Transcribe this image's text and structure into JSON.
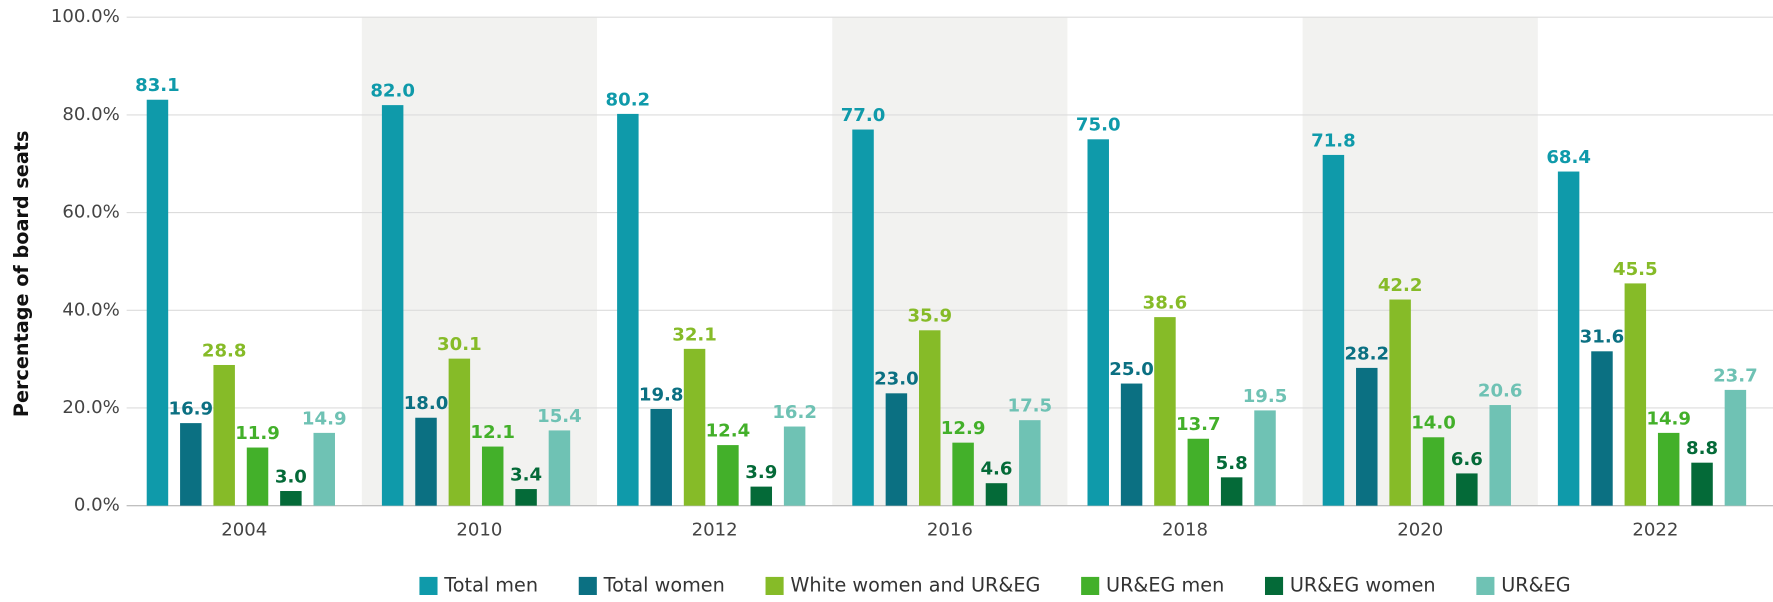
{
  "chart_data": {
    "type": "bar",
    "y_label": "Percentage of board seats",
    "categories": [
      "2004",
      "2010",
      "2012",
      "2016",
      "2018",
      "2020",
      "2022"
    ],
    "series": [
      {
        "name": "Total men",
        "color": "#0f9aaa",
        "values": [
          83.1,
          82.0,
          80.2,
          77.0,
          75.0,
          71.8,
          68.4
        ],
        "value_labels": [
          "83.1",
          "82.0",
          "80.2",
          "77.0",
          "75.0",
          "71.8",
          "68.4"
        ]
      },
      {
        "name": "Total women",
        "color": "#0b7082",
        "values": [
          16.9,
          18.0,
          19.8,
          23.0,
          25.0,
          28.2,
          31.6
        ],
        "value_labels": [
          "16.9",
          "18.0",
          "19.8",
          "23.0",
          "25.0",
          "28.2",
          "31.6"
        ]
      },
      {
        "name": "White women and UR&EG",
        "color": "#86bb28",
        "values": [
          28.8,
          30.1,
          32.1,
          35.9,
          38.6,
          42.2,
          45.5
        ],
        "value_labels": [
          "28.8",
          "30.1",
          "32.1",
          "35.9",
          "38.6",
          "42.2",
          "45.5"
        ]
      },
      {
        "name": "UR&EG men",
        "color": "#43b02a",
        "values": [
          11.9,
          12.1,
          12.4,
          12.9,
          13.7,
          14.0,
          14.9
        ],
        "value_labels": [
          "11.9",
          "12.1",
          "12.4",
          "12.9",
          "13.7",
          "14.0",
          "14.9"
        ]
      },
      {
        "name": "UR&EG women",
        "color": "#046a38",
        "values": [
          3.0,
          3.4,
          3.9,
          4.6,
          5.8,
          6.6,
          8.8
        ],
        "value_labels": [
          "3.0",
          "3.4",
          "3.9",
          "4.6",
          "5.8",
          "6.6",
          "8.8"
        ]
      },
      {
        "name": "UR&EG",
        "color": "#6fc2b4",
        "values": [
          14.9,
          15.4,
          16.2,
          17.5,
          19.5,
          20.6,
          23.7
        ],
        "value_labels": [
          "14.9",
          "15.4",
          "16.2",
          "17.5",
          "19.5",
          "20.6",
          "23.7"
        ]
      }
    ],
    "ylim": [
      0,
      100
    ],
    "yticks": [
      {
        "value": 0,
        "label": "0.0%"
      },
      {
        "value": 20,
        "label": "20.0%"
      },
      {
        "value": 40,
        "label": "40.0%"
      },
      {
        "value": 60,
        "label": "60.0%"
      },
      {
        "value": 80,
        "label": "80.0%"
      },
      {
        "value": 100,
        "label": "100.0%"
      }
    ],
    "grid": true,
    "legend": "bottom",
    "band_color": "#f2f2f0"
  }
}
